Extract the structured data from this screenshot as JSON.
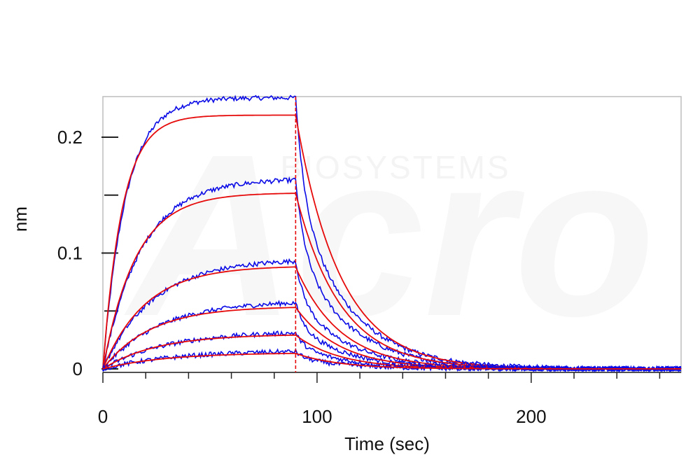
{
  "chart_data": {
    "type": "line",
    "title": "",
    "xlabel": "Time (sec)",
    "ylabel": "nm",
    "xlim": [
      0,
      270
    ],
    "ylim": [
      -0.003,
      0.235
    ],
    "x_ticks": [
      0,
      100,
      200
    ],
    "x_tick_labels": [
      "0",
      "100",
      "200"
    ],
    "y_ticks": [
      0,
      0.1,
      0.2
    ],
    "y_tick_labels": [
      "0",
      "0.1",
      "0.2"
    ],
    "grid": false,
    "legend": "none",
    "association_end_sec": 90,
    "association_start_sec": 0,
    "colors": {
      "measured": "#0a0ae6",
      "fit": "#e60a0a",
      "marker_line": "#e60a0a"
    },
    "series": [
      {
        "plateau_nm": 0.219,
        "measured_peak_nm": 0.234,
        "ka_rate": 0.11,
        "kd_rate": 0.048
      },
      {
        "plateau_nm": 0.152,
        "measured_peak_nm": 0.163,
        "ka_rate": 0.065,
        "kd_rate": 0.048
      },
      {
        "plateau_nm": 0.089,
        "measured_peak_nm": 0.093,
        "ka_rate": 0.05,
        "kd_rate": 0.048
      },
      {
        "plateau_nm": 0.054,
        "measured_peak_nm": 0.057,
        "ka_rate": 0.045,
        "kd_rate": 0.048
      },
      {
        "plateau_nm": 0.03,
        "measured_peak_nm": 0.031,
        "ka_rate": 0.04,
        "kd_rate": 0.048
      },
      {
        "plateau_nm": 0.014,
        "measured_peak_nm": 0.015,
        "ka_rate": 0.035,
        "kd_rate": 0.048
      }
    ]
  },
  "watermark": {
    "logo_text": "Acro",
    "sub_text": "BIOSYSTEMS"
  }
}
